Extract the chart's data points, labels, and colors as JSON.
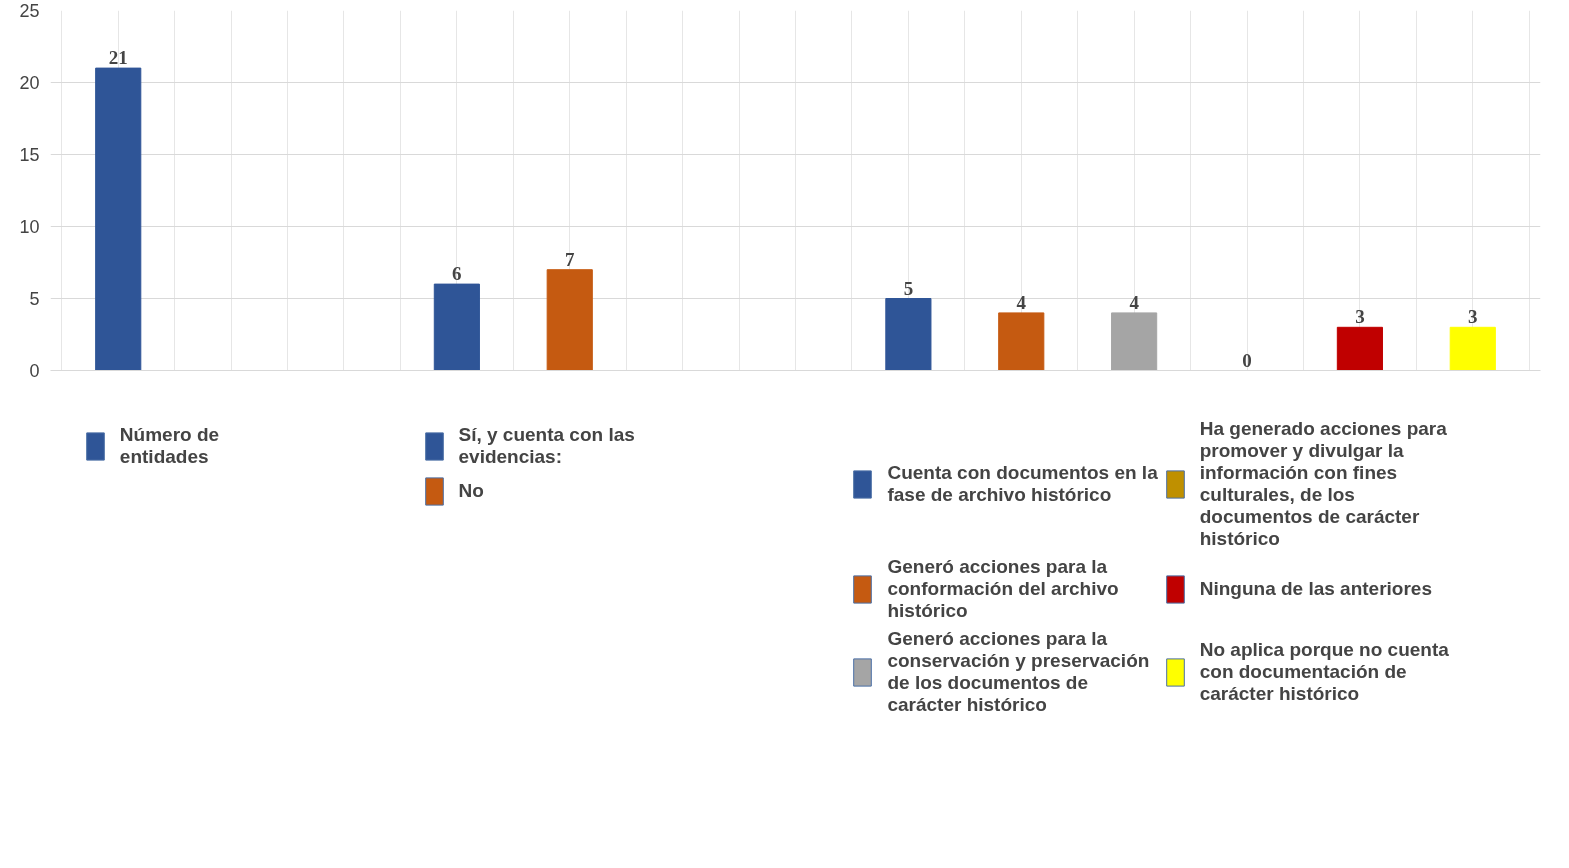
{
  "chart_data": {
    "type": "bar",
    "categories": [
      null,
      null,
      null,
      null,
      null,
      null,
      null,
      null,
      null,
      null,
      null,
      null,
      null
    ],
    "ylim": [
      0,
      25
    ],
    "yticks": [
      0,
      5,
      10,
      15,
      20,
      25
    ],
    "grid": true,
    "data_labels": true,
    "legend": "bottom",
    "series": [
      {
        "name": "Número de entidades",
        "color": "#2f5597",
        "values": [
          21,
          null,
          null,
          null,
          null,
          null,
          null,
          null,
          null,
          null,
          null,
          null,
          null
        ]
      },
      {
        "name": "Sí, y cuenta con las evidencias:",
        "color": "#2f5597",
        "values": [
          null,
          null,
          null,
          6,
          null,
          null,
          null,
          null,
          null,
          null,
          null,
          null,
          null
        ]
      },
      {
        "name": "No",
        "color": "#c55a11",
        "values": [
          null,
          null,
          null,
          null,
          7,
          null,
          null,
          null,
          null,
          null,
          null,
          null,
          null
        ]
      },
      {
        "name": "Cuenta con documentos en la fase de archivo histórico",
        "color": "#2f5597",
        "values": [
          null,
          null,
          null,
          null,
          null,
          null,
          null,
          5,
          null,
          null,
          null,
          null,
          null
        ]
      },
      {
        "name": "Generó acciones para la conformación del archivo histórico",
        "color": "#c55a11",
        "values": [
          null,
          null,
          null,
          null,
          null,
          null,
          null,
          null,
          4,
          null,
          null,
          null,
          null
        ]
      },
      {
        "name": "Generó acciones para la conservación y preservación de los documentos de carácter histórico",
        "color": "#a5a5a5",
        "values": [
          null,
          null,
          null,
          null,
          null,
          null,
          null,
          null,
          null,
          4,
          null,
          null,
          null
        ]
      },
      {
        "name": "Ha generado acciones para promover y divulgar la información con fines culturales, de los documentos de carácter histórico",
        "color": "#bf9000",
        "values": [
          null,
          null,
          null,
          null,
          null,
          null,
          null,
          null,
          null,
          null,
          0,
          null,
          null
        ]
      },
      {
        "name": "Ninguna de las anteriores",
        "color": "#c00000",
        "values": [
          null,
          null,
          null,
          null,
          null,
          null,
          null,
          null,
          null,
          null,
          null,
          3,
          null
        ]
      },
      {
        "name": "No aplica porque no cuenta con documentación de carácter histórico",
        "color": "#ffff00",
        "values": [
          null,
          null,
          null,
          null,
          null,
          null,
          null,
          null,
          null,
          null,
          null,
          null,
          3
        ]
      }
    ]
  }
}
